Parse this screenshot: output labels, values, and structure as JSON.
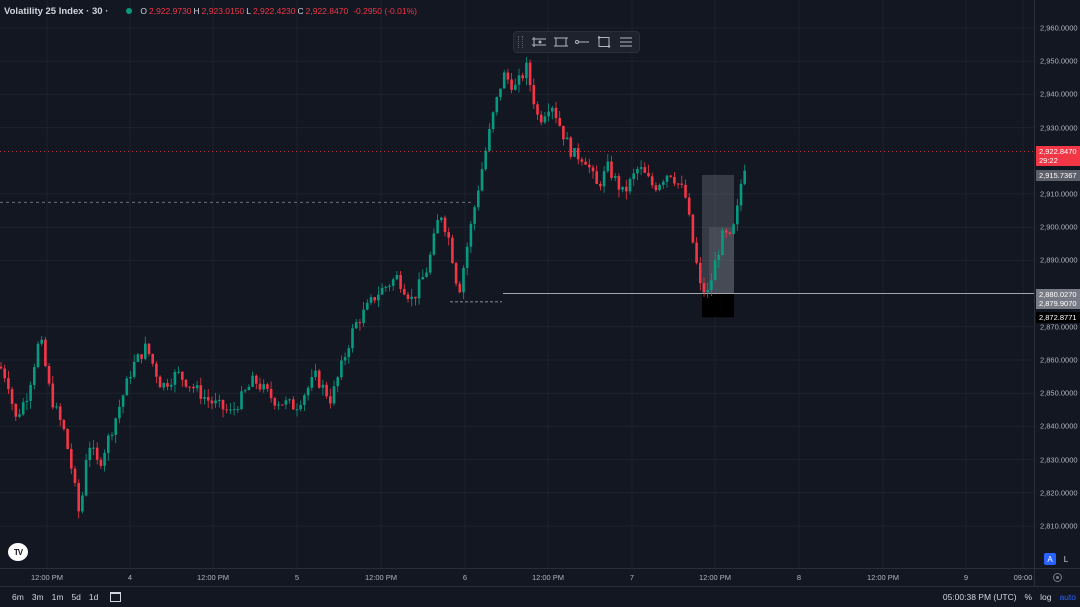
{
  "header": {
    "symbol": "Volatility 25 Index · 30 ·",
    "ohlc": [
      {
        "k": "O",
        "v": "2,922.9730"
      },
      {
        "k": "H",
        "v": "2,923.0150"
      },
      {
        "k": "L",
        "v": "2,922.4230"
      },
      {
        "k": "C",
        "v": "2,922.8470"
      }
    ],
    "change": "-0.2950 (-0.01%)"
  },
  "toolbar": {
    "icons": [
      "long-position-icon",
      "short-position-icon",
      "horizontal-ray-icon",
      "rectangle-icon",
      "text-lines-icon"
    ]
  },
  "chart_data": {
    "type": "candlestick",
    "y_ticks": [
      "2,960.0000",
      "2,950.0000",
      "2,940.0000",
      "2,930.0000",
      "2,910.0000",
      "2,900.0000",
      "2,890.0000",
      "2,870.0000",
      "2,860.0000",
      "2,850.0000",
      "2,840.0000",
      "2,830.0000",
      "2,820.0000",
      "2,810.0000"
    ],
    "ylim": [
      2805,
      2965
    ],
    "x_ticks": [
      "12:00 PM",
      "4",
      "12:00 PM",
      "5",
      "12:00 PM",
      "6",
      "12:00 PM",
      "7",
      "12:00 PM",
      "8",
      "12:00 PM",
      "9",
      "09:00"
    ],
    "price_labels": [
      {
        "text": "2,922.8470",
        "price": 2922.847,
        "style": "red"
      },
      {
        "text": "29:22",
        "price": 2922.847,
        "style": "red-sub"
      },
      {
        "text": "2,915.7367",
        "price": 2915.7367,
        "style": "grey"
      },
      {
        "text": "2,880.0270",
        "price": 2880.027,
        "style": "lgrey"
      },
      {
        "text": "2,879.9070",
        "price": 2879.907,
        "style": "lgrey-sub"
      },
      {
        "text": "2,872.8771",
        "price": 2872.8771,
        "style": "black"
      }
    ],
    "current_price": 2922.847,
    "horizontal_line_price": 2880.027,
    "dashed_level_price": 2907.5,
    "dashed_swing_price": 2877.5,
    "path": [
      [
        2858.0,
        0
      ],
      [
        2854.0,
        0.05
      ],
      [
        2842.0,
        0.1
      ],
      [
        2850.0,
        0.18
      ],
      [
        2867.0,
        0.26
      ],
      [
        2849.0,
        0.33
      ],
      [
        2838.0,
        0.42
      ],
      [
        2826.0,
        0.47
      ],
      [
        2812.0,
        0.52
      ],
      [
        2836.0,
        0.57
      ],
      [
        2828.0,
        0.64
      ],
      [
        2841.0,
        0.74
      ],
      [
        2858.0,
        0.86
      ],
      [
        2864.0,
        0.95
      ],
      [
        2852.0,
        1.05
      ],
      [
        2856.0,
        1.15
      ],
      [
        2848.0,
        1.35
      ],
      [
        2844.0,
        1.5
      ],
      [
        2854.0,
        1.65
      ],
      [
        2848.0,
        1.78
      ],
      [
        2846.0,
        1.92
      ],
      [
        2855.0,
        2.05
      ],
      [
        2848.0,
        2.15
      ],
      [
        2870.0,
        2.3
      ],
      [
        2880.0,
        2.45
      ],
      [
        2885.0,
        2.58
      ],
      [
        2878.0,
        2.68
      ],
      [
        2888.0,
        2.78
      ],
      [
        2905.0,
        2.86
      ],
      [
        2896.0,
        2.92
      ],
      [
        2880.0,
        2.98
      ],
      [
        2898.0,
        3.05
      ],
      [
        2915.0,
        3.12
      ],
      [
        2933.0,
        3.2
      ],
      [
        2946.0,
        3.27
      ],
      [
        2942.0,
        3.35
      ],
      [
        2948.0,
        3.42
      ],
      [
        2932.0,
        3.5
      ],
      [
        2938.0,
        3.58
      ],
      [
        2928.0,
        3.66
      ],
      [
        2922.0,
        3.72
      ],
      [
        2921.0,
        3.8
      ],
      [
        2912.0,
        3.88
      ],
      [
        2918.0,
        3.95
      ],
      [
        2910.0,
        4.05
      ],
      [
        2918.0,
        4.15
      ],
      [
        2912.0,
        4.25
      ],
      [
        2917.0,
        4.35
      ],
      [
        2910.0,
        4.45
      ],
      [
        2896.0,
        4.5
      ],
      [
        2882.0,
        4.55
      ],
      [
        2880.0,
        4.6
      ],
      [
        2890.0,
        4.65
      ],
      [
        2898.0,
        4.7
      ],
      [
        2896.0,
        4.75
      ],
      [
        2905.0,
        4.79
      ],
      [
        2915.0,
        4.82
      ],
      [
        2922.8,
        4.86
      ]
    ]
  },
  "bottom": {
    "ranges": [
      "6m",
      "3m",
      "1m",
      "5d",
      "1d"
    ],
    "clock": "05:00:38 PM (UTC)",
    "percent": "%",
    "log": "log",
    "auto": "auto",
    "btn_a": "A",
    "btn_l": "L"
  }
}
